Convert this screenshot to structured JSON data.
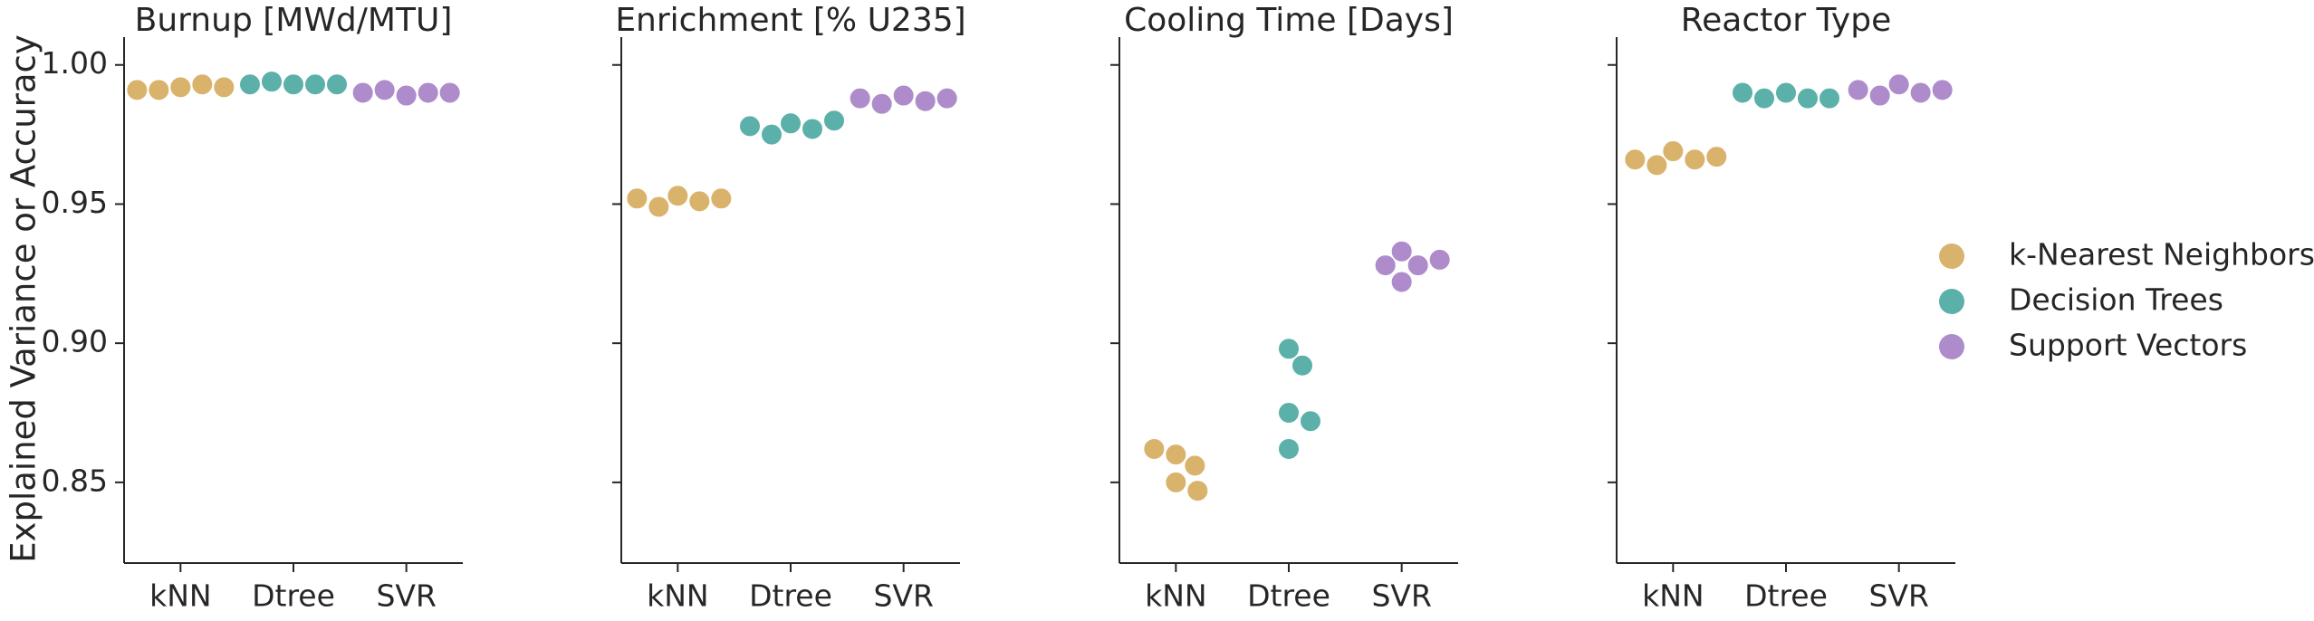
{
  "chart_data": {
    "type": "swarm",
    "ylabel": "Explained Variance or Accuracy",
    "titles": [
      "Burnup [MWd/MTU]",
      "Enrichment [% U235]",
      "Cooling Time [Days]",
      "Reactor Type"
    ],
    "categories": [
      "kNN",
      "Dtree",
      "SVR"
    ],
    "ylim": [
      0.821,
      1.01
    ],
    "yticks": [
      0.85,
      {
        "value": 0.9,
        "label": "0.90"
      },
      0.95,
      {
        "value": 1.0,
        "label": "1.00"
      }
    ],
    "legend": "right",
    "series": [
      {
        "name": "k-Nearest Neighbors",
        "color": "#d9b26b",
        "values": [
          [
            0.992,
            0.993,
            0.991,
            0.992,
            0.991
          ],
          [
            0.953,
            0.951,
            0.949,
            0.952,
            0.952
          ],
          [
            0.86,
            0.856,
            0.862,
            0.85,
            0.847
          ],
          [
            0.969,
            0.966,
            0.964,
            0.966,
            0.967
          ]
        ]
      },
      {
        "name": "Decision Trees",
        "color": "#5bb1a9",
        "values": [
          [
            0.993,
            0.993,
            0.994,
            0.993,
            0.993
          ],
          [
            0.979,
            0.977,
            0.975,
            0.978,
            0.98
          ],
          [
            0.898,
            0.892,
            0.875,
            0.872,
            0.862
          ],
          [
            0.99,
            0.988,
            0.988,
            0.988,
            0.99
          ]
        ]
      },
      {
        "name": "Support Vectors",
        "color": "#ae8bca",
        "values": [
          [
            0.989,
            0.99,
            0.991,
            0.99,
            0.99
          ],
          [
            0.989,
            0.987,
            0.986,
            0.988,
            0.988
          ],
          [
            0.933,
            0.928,
            0.922,
            0.928,
            0.93
          ],
          [
            0.993,
            0.99,
            0.989,
            0.991,
            0.991
          ]
        ]
      }
    ]
  }
}
